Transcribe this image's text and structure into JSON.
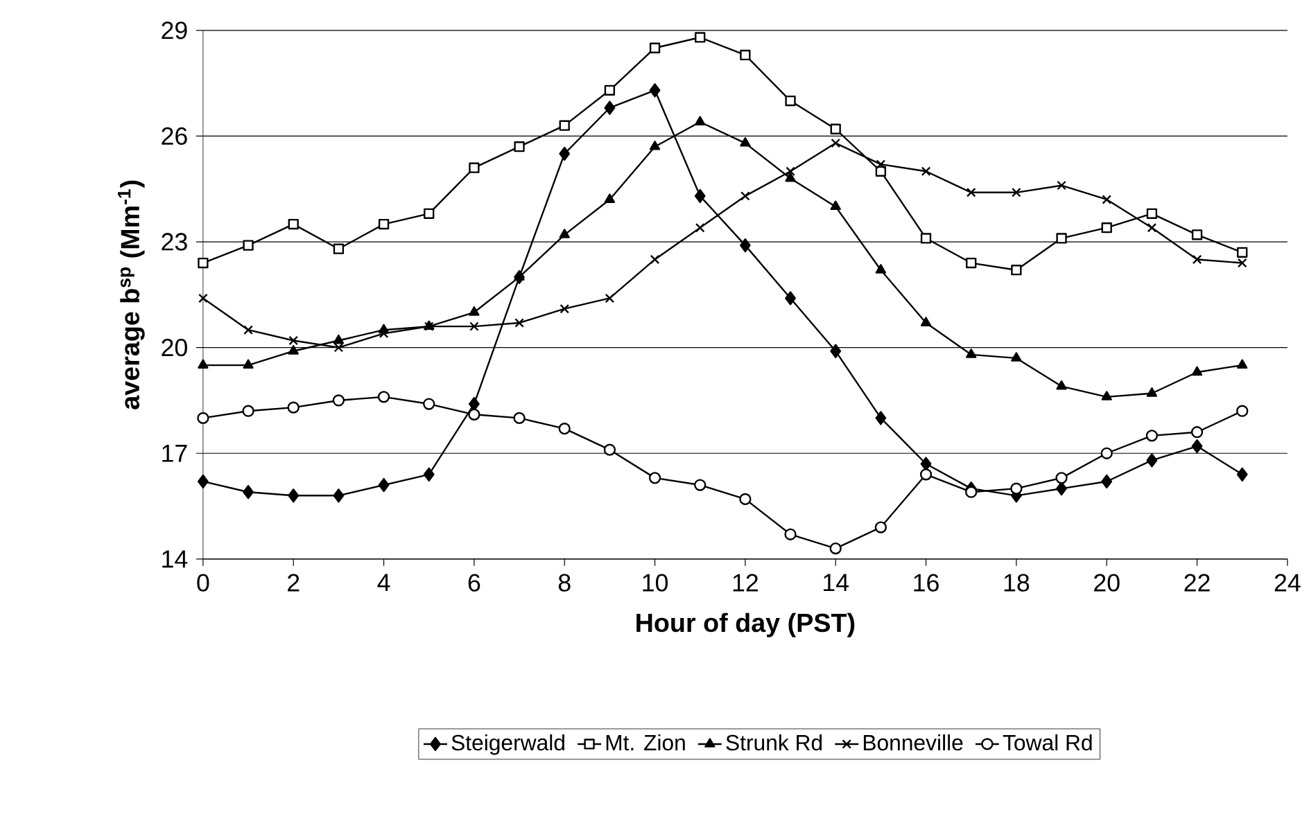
{
  "chart_data": {
    "type": "line",
    "xlabel": "Hour of day (PST)",
    "ylabel": "average b$^{sp}$ (Mm$^{-1}$)",
    "x": [
      0,
      1,
      2,
      3,
      4,
      5,
      6,
      7,
      8,
      9,
      10,
      11,
      12,
      13,
      14,
      15,
      16,
      17,
      18,
      19,
      20,
      21,
      22,
      23
    ],
    "xlim": [
      0,
      24
    ],
    "xticks": [
      0,
      2,
      4,
      6,
      8,
      10,
      12,
      14,
      16,
      18,
      20,
      22,
      24
    ],
    "ylim": [
      14,
      29
    ],
    "yticks": [
      14,
      17,
      20,
      23,
      26,
      29
    ],
    "grid": "y",
    "legend": "bottom",
    "line_style": "solid",
    "series": [
      {
        "name": "Steigerwald",
        "color": "#000000",
        "marker": "diamond",
        "values": [
          16.2,
          15.9,
          15.8,
          15.8,
          16.1,
          16.4,
          18.4,
          22.0,
          25.5,
          26.8,
          27.3,
          24.3,
          22.9,
          21.4,
          19.9,
          18.0,
          16.7,
          16.0,
          15.8,
          16.0,
          16.2,
          16.8,
          17.2,
          16.4
        ]
      },
      {
        "name": "Mt. Zion",
        "color": "#000000",
        "marker": "square",
        "values": [
          22.4,
          22.9,
          23.5,
          22.8,
          23.5,
          23.8,
          25.1,
          25.7,
          26.3,
          27.3,
          28.5,
          28.8,
          28.3,
          27.0,
          26.2,
          25.0,
          23.1,
          22.4,
          22.2,
          23.1,
          23.4,
          23.8,
          23.2,
          22.7
        ]
      },
      {
        "name": "Strunk Rd",
        "color": "#000000",
        "marker": "triangle",
        "values": [
          19.5,
          19.5,
          19.9,
          20.2,
          20.5,
          20.6,
          21.0,
          22.0,
          23.2,
          24.2,
          25.7,
          26.4,
          25.8,
          24.8,
          24.0,
          22.2,
          20.7,
          19.8,
          19.7,
          18.9,
          18.6,
          18.7,
          19.3,
          19.5
        ]
      },
      {
        "name": "Bonneville",
        "color": "#000000",
        "marker": "cross",
        "values": [
          21.4,
          20.5,
          20.2,
          20.0,
          20.4,
          20.6,
          20.6,
          20.7,
          21.1,
          21.4,
          22.5,
          23.4,
          24.3,
          25.0,
          25.8,
          25.2,
          25.0,
          24.4,
          24.4,
          24.6,
          24.2,
          23.4,
          22.5,
          22.4
        ]
      },
      {
        "name": "Towal Rd",
        "color": "#000000",
        "marker": "circle",
        "values": [
          18.0,
          18.2,
          18.3,
          18.5,
          18.6,
          18.4,
          18.1,
          18.0,
          17.7,
          17.1,
          16.3,
          16.1,
          15.7,
          14.7,
          14.3,
          14.9,
          16.4,
          15.9,
          16.0,
          16.3,
          17.0,
          17.5,
          17.6,
          18.2
        ]
      }
    ]
  }
}
